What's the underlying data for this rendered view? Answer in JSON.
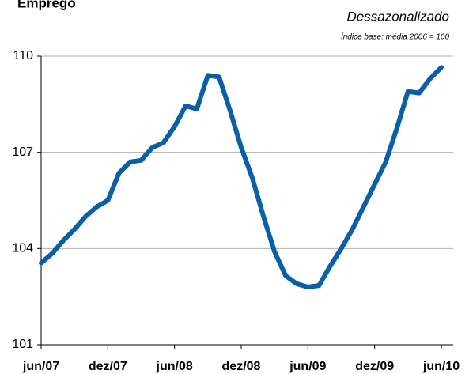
{
  "chart_data": {
    "type": "line",
    "title": "Emprego",
    "subtitle": "Dessazonalizado",
    "note": "Índice base: média 2006 = 100",
    "categories": [
      "jun/07",
      null,
      null,
      null,
      null,
      null,
      "dez/07",
      null,
      null,
      null,
      null,
      null,
      "jun/08",
      null,
      null,
      null,
      null,
      null,
      "dez/08",
      null,
      null,
      null,
      null,
      null,
      "jun/09",
      null,
      null,
      null,
      null,
      null,
      "dez/09",
      null,
      null,
      null,
      null,
      null,
      "jun/10"
    ],
    "series": [
      {
        "name": "Emprego",
        "color": "#0b5ea8",
        "values": [
          103.55,
          103.85,
          104.25,
          104.6,
          105.0,
          105.3,
          105.5,
          106.35,
          106.7,
          106.75,
          107.15,
          107.3,
          107.8,
          108.45,
          108.35,
          109.4,
          109.35,
          108.3,
          107.15,
          106.2,
          105.0,
          103.9,
          103.15,
          102.9,
          102.8,
          102.85,
          103.45,
          104.0,
          104.6,
          105.3,
          106.0,
          106.7,
          107.75,
          108.9,
          108.85,
          109.3,
          109.65
        ]
      }
    ],
    "ylim": [
      101,
      110
    ],
    "yticks": [
      101,
      104,
      107,
      110
    ],
    "grid": true
  }
}
